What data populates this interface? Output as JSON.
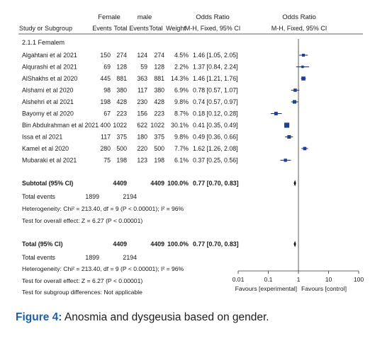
{
  "chart_data": {
    "type": "forest",
    "header": {
      "group1": "Female",
      "group2": "male",
      "odds_ratio": "Odds Ratio",
      "odds_ratio_plot": "Odds Ratio",
      "study": "Study or Subgroup",
      "events1": "Events",
      "total1": "Total",
      "events2": "Events",
      "total2": "Total",
      "weight": "Weight",
      "method": "M-H, Fixed, 95% CI",
      "method_plot": "M-H, Fixed, 95% CI"
    },
    "subgroup_title": "2.1.1 Femalem",
    "studies": [
      {
        "name": "Algahtani et al 2021",
        "e1": "150",
        "n1": "274",
        "e2": "124",
        "n2": "274",
        "weight": "4.5%",
        "ci_text": "1.46 [1.05, 2.05]",
        "or": 1.46,
        "lo": 1.05,
        "hi": 2.05
      },
      {
        "name": "Alqurashi et al 2021",
        "e1": "69",
        "n1": "128",
        "e2": "59",
        "n2": "128",
        "weight": "2.2%",
        "ci_text": "1.37 [0.84, 2.24]",
        "or": 1.37,
        "lo": 0.84,
        "hi": 2.24
      },
      {
        "name": "AlShakhs et al 2020",
        "e1": "445",
        "n1": "881",
        "e2": "363",
        "n2": "881",
        "weight": "14.3%",
        "ci_text": "1.46 [1.21, 1.76]",
        "or": 1.46,
        "lo": 1.21,
        "hi": 1.76
      },
      {
        "name": "Alshami et al 2020",
        "e1": "98",
        "n1": "380",
        "e2": "117",
        "n2": "380",
        "weight": "6.9%",
        "ci_text": "0.78 [0.57, 1.07]",
        "or": 0.78,
        "lo": 0.57,
        "hi": 1.07
      },
      {
        "name": "Alshehri et al 2021",
        "e1": "198",
        "n1": "428",
        "e2": "230",
        "n2": "428",
        "weight": "9.8%",
        "ci_text": "0.74 [0.57, 0.97]",
        "or": 0.74,
        "lo": 0.57,
        "hi": 0.97
      },
      {
        "name": "Bayomy et al 2020",
        "e1": "67",
        "n1": "223",
        "e2": "156",
        "n2": "223",
        "weight": "8.7%",
        "ci_text": "0.18 [0.12, 0.28]",
        "or": 0.18,
        "lo": 0.12,
        "hi": 0.28
      },
      {
        "name": "Bin Abdulrahman et al 2021",
        "e1": "400",
        "n1": "1022",
        "e2": "622",
        "n2": "1022",
        "weight": "30.1%",
        "ci_text": "0.41 [0.35, 0.49]",
        "or": 0.41,
        "lo": 0.35,
        "hi": 0.49
      },
      {
        "name": "Issa et al 2021",
        "e1": "117",
        "n1": "375",
        "e2": "180",
        "n2": "375",
        "weight": "9.8%",
        "ci_text": "0.49 [0.36, 0.66]",
        "or": 0.49,
        "lo": 0.36,
        "hi": 0.66
      },
      {
        "name": "Kamel et al 2020",
        "e1": "280",
        "n1": "500",
        "e2": "220",
        "n2": "500",
        "weight": "7.7%",
        "ci_text": "1.62 [1.26, 2.08]",
        "or": 1.62,
        "lo": 1.26,
        "hi": 2.08
      },
      {
        "name": "Mubaraki et al 2021",
        "e1": "75",
        "n1": "198",
        "e2": "123",
        "n2": "198",
        "weight": "6.1%",
        "ci_text": "0.37 [0.25, 0.56]",
        "or": 0.37,
        "lo": 0.25,
        "hi": 0.56
      }
    ],
    "subtotal": {
      "label": "Subtotal (95% CI)",
      "n1": "4409",
      "n2": "4409",
      "weight": "100.0%",
      "ci_text": "0.77 [0.70, 0.83]",
      "or": 0.77,
      "lo": 0.7,
      "hi": 0.83
    },
    "subtotal_events": {
      "label": "Total events",
      "e1": "1899",
      "e2": "2194"
    },
    "subtotal_heterogeneity": "Heterogeneity: Chi² = 213.40, df = 9 (P < 0.00001); I² = 96%",
    "subtotal_test": "Test for overall effect: Z = 6.27 (P < 0.00001)",
    "total": {
      "label": "Total (95% CI)",
      "n1": "4409",
      "n2": "4409",
      "weight": "100.0%",
      "ci_text": "0.77 [0.70, 0.83]",
      "or": 0.77,
      "lo": 0.7,
      "hi": 0.83
    },
    "total_events": {
      "label": "Total events",
      "e1": "1899",
      "e2": "2194"
    },
    "total_heterogeneity": "Heterogeneity: Chi² = 213.40, df = 9 (P < 0.00001); I² = 96%",
    "total_test": "Test for overall effect: Z = 6.27 (P < 0.00001)",
    "subgroup_differences": "Test for subgroup differences: Not applicable",
    "axis": {
      "scale": "log",
      "ticks": [
        0.01,
        0.1,
        1,
        10,
        100
      ],
      "tick_labels": [
        "0.01",
        "0.1",
        "1",
        "10",
        "100"
      ],
      "favours_left": "Favours [experimental]",
      "favours_right": "Favours [control]"
    },
    "marker_color": "#1f3f9e"
  },
  "caption": {
    "label": "Figure 4:",
    "text": "Anosmia and dysgeusia based on gender."
  }
}
